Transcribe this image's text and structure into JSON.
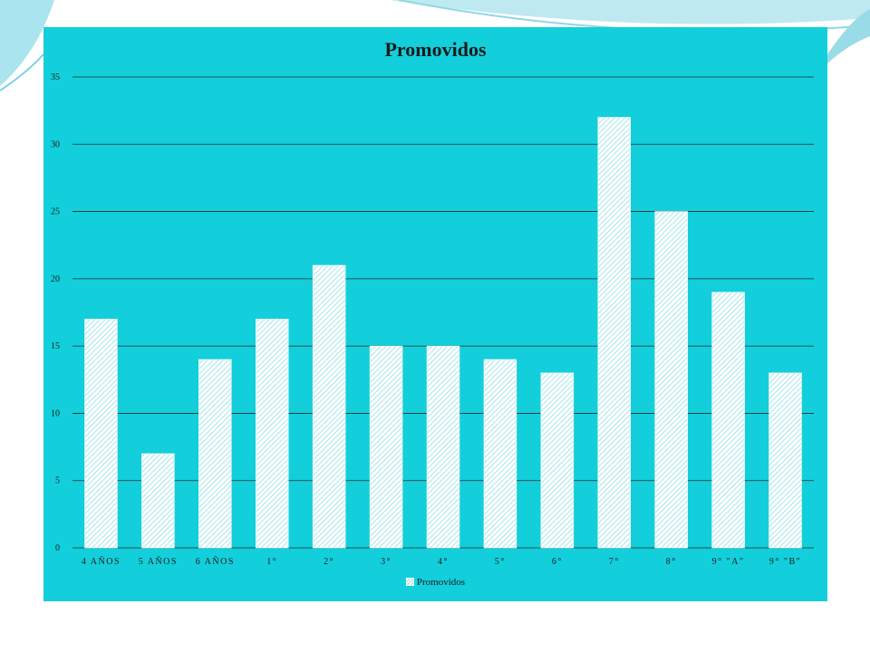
{
  "chart_data": {
    "type": "bar",
    "title": "Promovidos",
    "categories": [
      "4 AÑOS",
      "5 AÑOS",
      "6 AÑOS",
      "1°",
      "2°",
      "3°",
      "4°",
      "5°",
      "6°",
      "7°",
      "8°",
      "9° \"A\"",
      "9° \"B\""
    ],
    "series": [
      {
        "name": "Promovidos",
        "values": [
          17,
          7,
          14,
          17,
          21,
          15,
          15,
          14,
          13,
          32,
          25,
          19,
          13
        ]
      }
    ],
    "ylim": [
      0,
      35
    ],
    "yticks": [
      0,
      5,
      10,
      15,
      20,
      25,
      30,
      35
    ],
    "grid": true,
    "legend_position": "bottom"
  },
  "colors": {
    "panel_bg": "#12cfdb",
    "bar_fill": "white-hatched",
    "gridline": "#2a2a2a"
  }
}
